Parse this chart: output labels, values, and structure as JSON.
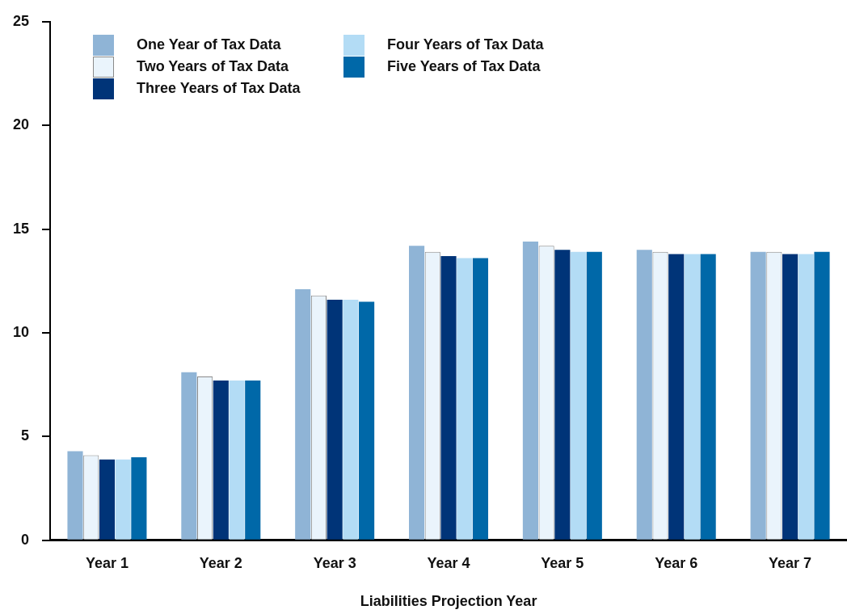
{
  "chart_data": {
    "type": "bar",
    "xlabel": "Liabilities Projection Year",
    "categories": [
      "Year 1",
      "Year 2",
      "Year 3",
      "Year 4",
      "Year 5",
      "Year 6",
      "Year 7"
    ],
    "series": [
      {
        "name": "One Year of Tax Data",
        "color": "#8fb4d6",
        "values": [
          4.3,
          8.1,
          12.1,
          14.2,
          14.4,
          14.0,
          13.9
        ]
      },
      {
        "name": "Two Years of Tax Data",
        "color": "#eaf4fc",
        "values": [
          4.1,
          7.9,
          11.8,
          13.9,
          14.2,
          13.9,
          13.9
        ]
      },
      {
        "name": "Three Years of Tax Data",
        "color": "#003478",
        "values": [
          3.9,
          7.7,
          11.6,
          13.7,
          14.0,
          13.8,
          13.8
        ]
      },
      {
        "name": "Four Years of Tax Data",
        "color": "#b3dcf5",
        "values": [
          3.9,
          7.7,
          11.6,
          13.6,
          13.9,
          13.8,
          13.8
        ]
      },
      {
        "name": "Five Years of Tax Data",
        "color": "#0068a8",
        "values": [
          4.0,
          7.7,
          11.5,
          13.6,
          13.9,
          13.8,
          13.9
        ]
      }
    ],
    "ylim": [
      0,
      25
    ],
    "yticks": [
      0,
      5,
      10,
      15,
      20,
      25
    ],
    "grid": false,
    "legend": "top left"
  }
}
